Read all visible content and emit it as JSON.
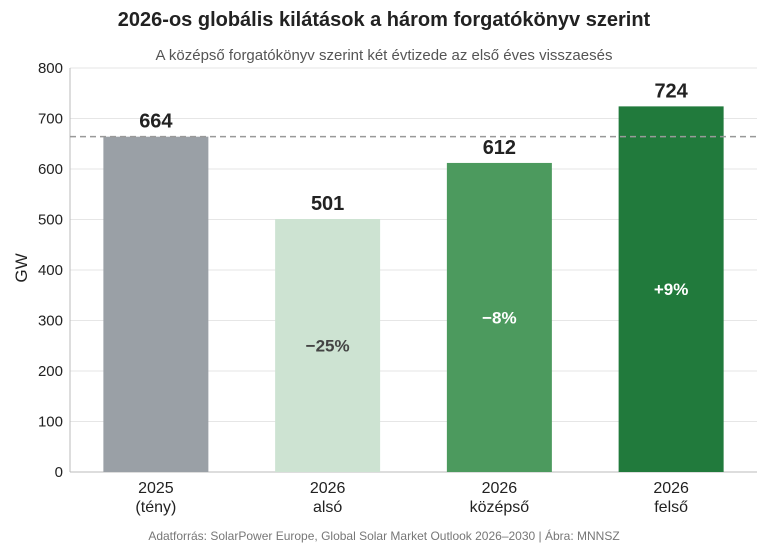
{
  "chart_data": {
    "type": "bar",
    "title": "2026-os globális kilátások a három forgatókönyv szerint",
    "subtitle": "A középső forgatókönyv szerint két évtizede az első éves visszaesés",
    "ylabel": "GW",
    "xlabel": "",
    "ylim": [
      0,
      800
    ],
    "yticks": [
      0,
      100,
      200,
      300,
      400,
      500,
      600,
      700,
      800
    ],
    "grid": true,
    "categories": [
      {
        "year": "2025",
        "label": "(tény)"
      },
      {
        "year": "2026",
        "label": "alsó"
      },
      {
        "year": "2026",
        "label": "középső"
      },
      {
        "year": "2026",
        "label": "felső"
      }
    ],
    "values": [
      664,
      501,
      612,
      724
    ],
    "value_labels": [
      "664",
      "501",
      "612",
      "724"
    ],
    "change_labels": [
      "",
      "−25%",
      "−8%",
      "+9%"
    ],
    "colors": [
      "#9aa0a6",
      "#cde3d2",
      "#4c9a5e",
      "#217a3c"
    ],
    "change_label_colors": [
      "",
      "#444444",
      "#ffffff",
      "#ffffff"
    ],
    "reference_line": {
      "value": 664,
      "style": "dashed",
      "color": "#999999"
    }
  },
  "source": "Adatforrás: SolarPower Europe, Global Solar Market Outlook 2026–2030  |  Ábra: MNNSZ"
}
